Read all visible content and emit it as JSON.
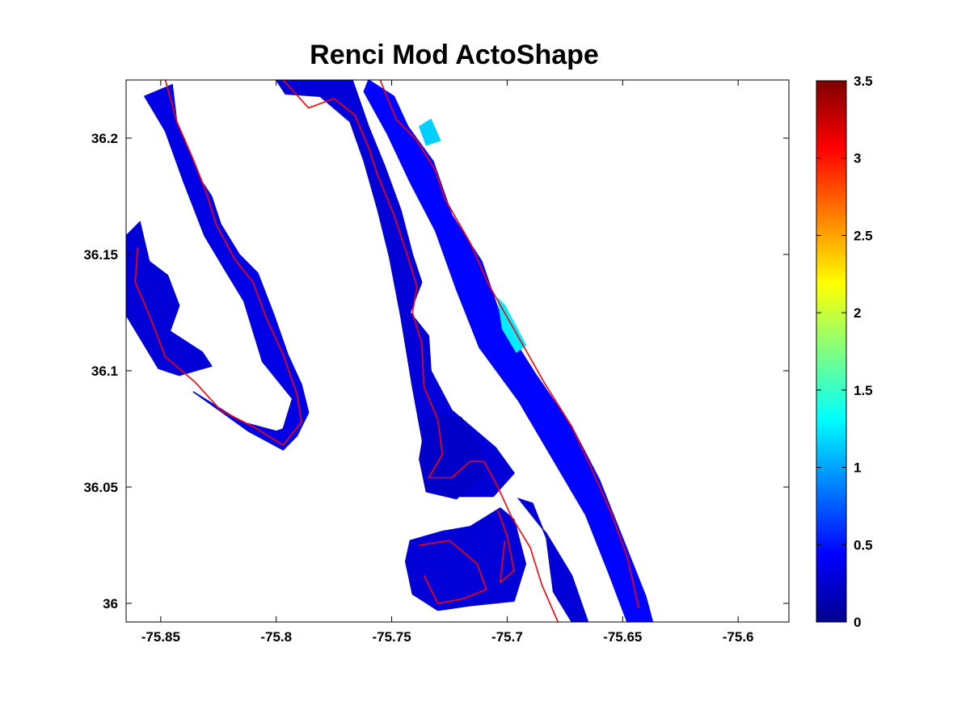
{
  "chart_data": {
    "type": "heatmap",
    "title": "Renci Mod  ActoShape",
    "xlabel": "",
    "ylabel": "",
    "xlim": [
      -75.865,
      -75.578
    ],
    "ylim": [
      35.992,
      36.225
    ],
    "xticks": [
      -75.85,
      -75.8,
      -75.75,
      -75.7,
      -75.65,
      -75.6
    ],
    "xtick_labels": [
      "-75.85",
      "-75.8",
      "-75.75",
      "-75.7",
      "-75.65",
      "-75.6"
    ],
    "yticks": [
      36,
      36.05,
      36.1,
      36.15,
      36.2
    ],
    "ytick_labels": [
      "36",
      "36.05",
      "36.1",
      "36.15",
      "36.2"
    ],
    "grid": false,
    "colormap": "jet",
    "clim": [
      0,
      3.5
    ],
    "colorbar_ticks": [
      0,
      0.5,
      1,
      1.5,
      2,
      2.5,
      3,
      3.5
    ],
    "colorbar_tick_labels": [
      "0",
      "0.5",
      "1",
      "1.5",
      "2",
      "2.5",
      "3",
      "3.5"
    ],
    "overlay_line_color": "#ff0000",
    "regions": [
      {
        "id": "west-shore-strip",
        "value": 0.35,
        "polygon": [
          [
            -75.857,
            36.218
          ],
          [
            -75.845,
            36.223
          ],
          [
            -75.843,
            36.206
          ],
          [
            -75.832,
            36.181
          ],
          [
            -75.828,
            36.175
          ],
          [
            -75.824,
            36.163
          ],
          [
            -75.816,
            36.15
          ],
          [
            -75.808,
            36.142
          ],
          [
            -75.801,
            36.124
          ],
          [
            -75.795,
            36.107
          ],
          [
            -75.789,
            36.094
          ],
          [
            -75.786,
            36.082
          ],
          [
            -75.791,
            36.072
          ],
          [
            -75.797,
            36.066
          ],
          [
            -75.812,
            36.074
          ],
          [
            -75.826,
            36.084
          ],
          [
            -75.836,
            36.091
          ],
          [
            -75.815,
            36.078
          ],
          [
            -75.8,
            36.074
          ],
          [
            -75.797,
            36.075
          ],
          [
            -75.793,
            36.088
          ],
          [
            -75.806,
            36.104
          ],
          [
            -75.814,
            36.13
          ],
          [
            -75.822,
            36.143
          ],
          [
            -75.831,
            36.158
          ],
          [
            -75.84,
            36.181
          ],
          [
            -75.848,
            36.203
          ]
        ]
      },
      {
        "id": "west-peninsula-blob",
        "value": 0.3,
        "polygon": [
          [
            -75.865,
            36.158
          ],
          [
            -75.859,
            36.164
          ],
          [
            -75.855,
            36.147
          ],
          [
            -75.847,
            36.141
          ],
          [
            -75.842,
            36.128
          ],
          [
            -75.846,
            36.117
          ],
          [
            -75.832,
            36.108
          ],
          [
            -75.828,
            36.102
          ],
          [
            -75.842,
            36.098
          ],
          [
            -75.851,
            36.101
          ],
          [
            -75.865,
            36.124
          ]
        ]
      },
      {
        "id": "outer-banks-west-strip",
        "value": 0.3,
        "polygon": [
          [
            -75.8,
            36.225
          ],
          [
            -75.767,
            36.225
          ],
          [
            -75.76,
            36.205
          ],
          [
            -75.753,
            36.188
          ],
          [
            -75.746,
            36.169
          ],
          [
            -75.741,
            36.15
          ],
          [
            -75.737,
            36.138
          ],
          [
            -75.742,
            36.125
          ],
          [
            -75.734,
            36.115
          ],
          [
            -75.733,
            36.1
          ],
          [
            -75.724,
            36.083
          ],
          [
            -75.705,
            36.067
          ],
          [
            -75.697,
            36.056
          ],
          [
            -75.706,
            36.046
          ],
          [
            -75.72,
            36.046
          ],
          [
            -75.733,
            36.05
          ],
          [
            -75.736,
            36.066
          ],
          [
            -75.741,
            36.093
          ],
          [
            -75.746,
            36.123
          ],
          [
            -75.751,
            36.149
          ],
          [
            -75.756,
            36.169
          ],
          [
            -75.762,
            36.19
          ],
          [
            -75.768,
            36.207
          ],
          [
            -75.781,
            36.218
          ],
          [
            -75.796,
            36.219
          ]
        ]
      },
      {
        "id": "sound-island-blob",
        "value": 0.25,
        "polygon": [
          [
            -75.735,
            36.08
          ],
          [
            -75.72,
            36.08
          ],
          [
            -75.712,
            36.068
          ],
          [
            -75.71,
            36.055
          ],
          [
            -75.722,
            36.045
          ],
          [
            -75.735,
            36.048
          ],
          [
            -75.738,
            36.062
          ]
        ]
      },
      {
        "id": "southern-island-ring",
        "value": 0.3,
        "polygon": [
          [
            -75.742,
            36.027
          ],
          [
            -75.728,
            36.031
          ],
          [
            -75.716,
            36.033
          ],
          [
            -75.703,
            36.041
          ],
          [
            -75.697,
            36.036
          ],
          [
            -75.692,
            36.017
          ],
          [
            -75.697,
            36.001
          ],
          [
            -75.716,
            35.999
          ],
          [
            -75.73,
            35.997
          ],
          [
            -75.741,
            36.004
          ],
          [
            -75.744,
            36.018
          ]
        ]
      },
      {
        "id": "barrier-island-strip",
        "value": 0.45,
        "polygon": [
          [
            -75.76,
            36.225
          ],
          [
            -75.749,
            36.218
          ],
          [
            -75.743,
            36.205
          ],
          [
            -75.732,
            36.19
          ],
          [
            -75.724,
            36.167
          ],
          [
            -75.711,
            36.147
          ],
          [
            -75.702,
            36.121
          ],
          [
            -75.688,
            36.099
          ],
          [
            -75.672,
            36.076
          ],
          [
            -75.66,
            36.053
          ],
          [
            -75.65,
            36.028
          ],
          [
            -75.64,
            36.003
          ],
          [
            -75.637,
            35.992
          ],
          [
            -75.648,
            35.992
          ],
          [
            -75.656,
            36.013
          ],
          [
            -75.666,
            36.038
          ],
          [
            -75.679,
            36.06
          ],
          [
            -75.695,
            36.087
          ],
          [
            -75.712,
            36.11
          ],
          [
            -75.722,
            36.135
          ],
          [
            -75.731,
            36.16
          ],
          [
            -75.742,
            36.181
          ],
          [
            -75.752,
            36.202
          ],
          [
            -75.762,
            36.22
          ]
        ]
      },
      {
        "id": "southern-channel-strip",
        "value": 0.3,
        "polygon": [
          [
            -75.695,
            36.045
          ],
          [
            -75.689,
            36.043
          ],
          [
            -75.683,
            36.028
          ],
          [
            -75.68,
            36.005
          ],
          [
            -75.672,
            35.992
          ],
          [
            -75.665,
            35.992
          ],
          [
            -75.672,
            36.012
          ],
          [
            -75.683,
            36.03
          ]
        ]
      },
      {
        "id": "barrier-shoreline-cyan-north",
        "value": 1.15,
        "polygon": [
          [
            -75.738,
            36.205
          ],
          [
            -75.733,
            36.208
          ],
          [
            -75.729,
            36.199
          ],
          [
            -75.735,
            36.197
          ]
        ]
      },
      {
        "id": "barrier-shoreline-cyan-mid",
        "value": 1.25,
        "polygon": [
          [
            -75.704,
            36.131
          ],
          [
            -75.701,
            36.128
          ],
          [
            -75.692,
            36.111
          ],
          [
            -75.696,
            36.108
          ],
          [
            -75.702,
            36.118
          ]
        ]
      }
    ],
    "shoreline_paths": [
      [
        [
          -75.848,
          36.225
        ],
        [
          -75.843,
          36.207
        ],
        [
          -75.836,
          36.191
        ],
        [
          -75.83,
          36.176
        ],
        [
          -75.826,
          36.163
        ],
        [
          -75.818,
          36.148
        ],
        [
          -75.81,
          36.138
        ],
        [
          -75.804,
          36.122
        ],
        [
          -75.797,
          36.107
        ],
        [
          -75.791,
          36.09
        ],
        [
          -75.789,
          36.078
        ],
        [
          -75.797,
          36.068
        ],
        [
          -75.81,
          36.076
        ],
        [
          -75.824,
          36.083
        ],
        [
          -75.835,
          36.095
        ],
        [
          -75.848,
          36.106
        ],
        [
          -75.855,
          36.124
        ],
        [
          -75.861,
          36.138
        ],
        [
          -75.86,
          36.153
        ]
      ],
      [
        [
          -75.797,
          36.225
        ],
        [
          -75.786,
          36.213
        ],
        [
          -75.775,
          36.217
        ],
        [
          -75.766,
          36.21
        ],
        [
          -75.76,
          36.196
        ],
        [
          -75.756,
          36.184
        ],
        [
          -75.749,
          36.167
        ],
        [
          -75.743,
          36.149
        ],
        [
          -75.739,
          36.136
        ],
        [
          -75.741,
          36.125
        ],
        [
          -75.737,
          36.112
        ],
        [
          -75.736,
          36.093
        ],
        [
          -75.73,
          36.079
        ],
        [
          -75.728,
          36.064
        ],
        [
          -75.734,
          36.054
        ],
        [
          -75.724,
          36.054
        ],
        [
          -75.716,
          36.061
        ],
        [
          -75.71,
          36.061
        ],
        [
          -75.704,
          36.05
        ],
        [
          -75.698,
          36.037
        ],
        [
          -75.69,
          36.024
        ],
        [
          -75.685,
          36.008
        ],
        [
          -75.678,
          35.992
        ]
      ],
      [
        [
          -75.755,
          36.225
        ],
        [
          -75.748,
          36.208
        ],
        [
          -75.739,
          36.199
        ],
        [
          -75.731,
          36.186
        ],
        [
          -75.727,
          36.174
        ],
        [
          -75.716,
          36.155
        ],
        [
          -75.708,
          36.137
        ],
        [
          -75.696,
          36.116
        ],
        [
          -75.684,
          36.095
        ],
        [
          -75.672,
          36.076
        ],
        [
          -75.663,
          36.057
        ],
        [
          -75.655,
          36.039
        ],
        [
          -75.648,
          36.02
        ],
        [
          -75.643,
          35.998
        ]
      ],
      [
        [
          -75.738,
          36.025
        ],
        [
          -75.725,
          36.027
        ],
        [
          -75.713,
          36.017
        ],
        [
          -75.709,
          36.006
        ],
        [
          -75.719,
          36.002
        ],
        [
          -75.73,
          36.0
        ],
        [
          -75.736,
          36.012
        ]
      ],
      [
        [
          -75.704,
          36.04
        ],
        [
          -75.7,
          36.029
        ],
        [
          -75.697,
          36.014
        ],
        [
          -75.703,
          36.009
        ],
        [
          -75.701,
          36.027
        ]
      ]
    ]
  }
}
